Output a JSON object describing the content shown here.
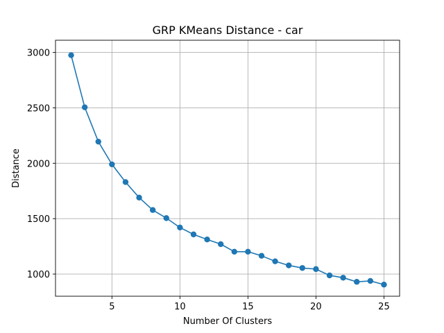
{
  "chart_data": {
    "type": "line",
    "title": "GRP KMeans Distance - car",
    "xlabel": "Number Of Clusters",
    "ylabel": "Distance",
    "xlim": [
      0.85,
      26.15
    ],
    "ylim": [
      800,
      3110
    ],
    "xticks": [
      5,
      10,
      15,
      20,
      25
    ],
    "yticks": [
      1000,
      1500,
      2000,
      2500,
      3000
    ],
    "grid": true,
    "legend": "none",
    "series": [
      {
        "color": "#1f77b4",
        "marker": "circle",
        "x": [
          2,
          3,
          4,
          5,
          6,
          7,
          8,
          9,
          10,
          11,
          12,
          13,
          14,
          15,
          16,
          17,
          18,
          19,
          20,
          21,
          22,
          23,
          24,
          25
        ],
        "y": [
          2975,
          2505,
          2195,
          1990,
          1830,
          1690,
          1578,
          1505,
          1420,
          1358,
          1312,
          1270,
          1202,
          1202,
          1165,
          1115,
          1078,
          1055,
          1045,
          988,
          967,
          930,
          938,
          905
        ]
      }
    ]
  }
}
